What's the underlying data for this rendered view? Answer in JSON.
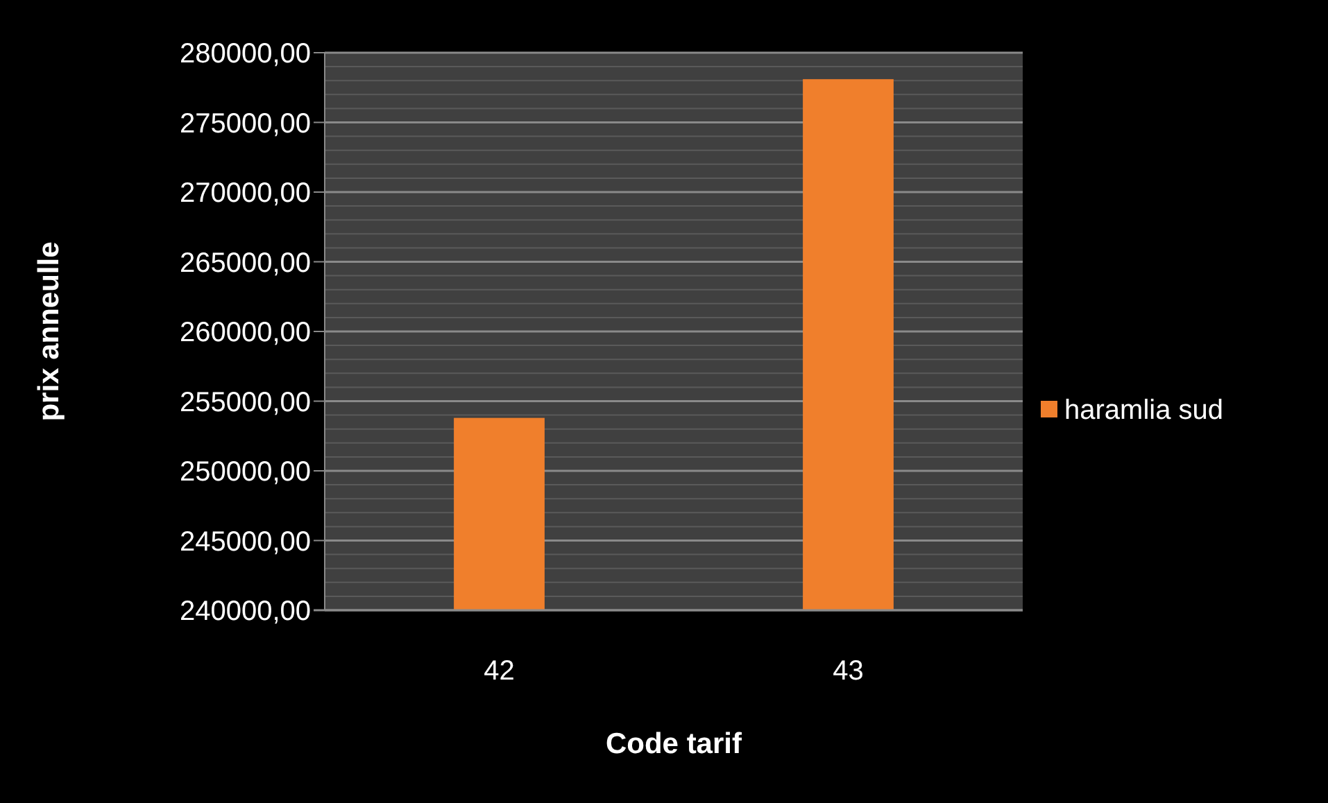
{
  "chart_data": {
    "type": "bar",
    "categories": [
      "42",
      "43"
    ],
    "series": [
      {
        "name": "haramlia sud",
        "color": "#f07f2c",
        "values": [
          253800,
          278100
        ]
      }
    ],
    "xlabel": "Code tarif",
    "ylabel": "prix anneulle",
    "ylim": [
      240000,
      280000
    ],
    "yticks": [
      {
        "value": 240000,
        "label": "240000,00"
      },
      {
        "value": 241000,
        "label": null
      },
      {
        "value": 242000,
        "label": null
      },
      {
        "value": 243000,
        "label": null
      },
      {
        "value": 244000,
        "label": null
      },
      {
        "value": 245000,
        "label": "245000,00"
      },
      {
        "value": 246000,
        "label": null
      },
      {
        "value": 247000,
        "label": null
      },
      {
        "value": 248000,
        "label": null
      },
      {
        "value": 249000,
        "label": null
      },
      {
        "value": 250000,
        "label": "250000,00"
      },
      {
        "value": 251000,
        "label": null
      },
      {
        "value": 252000,
        "label": null
      },
      {
        "value": 253000,
        "label": null
      },
      {
        "value": 254000,
        "label": null
      },
      {
        "value": 255000,
        "label": "255000,00"
      },
      {
        "value": 256000,
        "label": null
      },
      {
        "value": 257000,
        "label": null
      },
      {
        "value": 258000,
        "label": null
      },
      {
        "value": 259000,
        "label": null
      },
      {
        "value": 260000,
        "label": "260000,00"
      },
      {
        "value": 261000,
        "label": null
      },
      {
        "value": 262000,
        "label": null
      },
      {
        "value": 263000,
        "label": null
      },
      {
        "value": 264000,
        "label": null
      },
      {
        "value": 265000,
        "label": "265000,00"
      },
      {
        "value": 266000,
        "label": null
      },
      {
        "value": 267000,
        "label": null
      },
      {
        "value": 268000,
        "label": null
      },
      {
        "value": 269000,
        "label": null
      },
      {
        "value": 270000,
        "label": "270000,00"
      },
      {
        "value": 271000,
        "label": null
      },
      {
        "value": 272000,
        "label": null
      },
      {
        "value": 273000,
        "label": null
      },
      {
        "value": 274000,
        "label": null
      },
      {
        "value": 275000,
        "label": "275000,00"
      },
      {
        "value": 276000,
        "label": null
      },
      {
        "value": 277000,
        "label": null
      },
      {
        "value": 278000,
        "label": null
      },
      {
        "value": 279000,
        "label": null
      },
      {
        "value": 280000,
        "label": "280000,00"
      }
    ],
    "grid": true,
    "legend": "right"
  }
}
